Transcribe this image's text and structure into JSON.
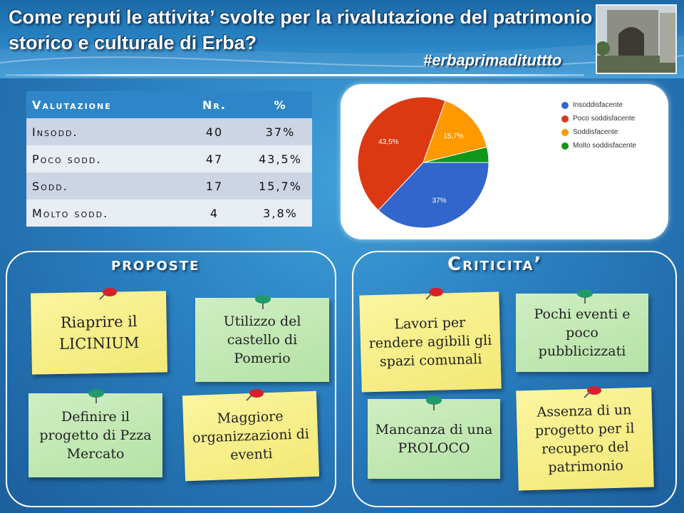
{
  "title": "Come reputi le attivita’ svolte per la rivalutazione del patrimonio storico e culturale di Erba?",
  "hashtag": "#erbaprimadituttto",
  "table": {
    "headers": [
      "Valutazione",
      "Nr.",
      "%"
    ],
    "rows": [
      {
        "label": "Insodd.",
        "nr": "40",
        "pct": "37%"
      },
      {
        "label": "Poco sodd.",
        "nr": "47",
        "pct": "43,5%"
      },
      {
        "label": "Sodd.",
        "nr": "17",
        "pct": "15,7%"
      },
      {
        "label": "Molto sodd.",
        "nr": "4",
        "pct": "3,8%"
      }
    ]
  },
  "chart_data": {
    "type": "pie",
    "categories": [
      "Insoddisfacente",
      "Poco soddisfacente",
      "Soddisfacente",
      "Molto soddisfacente"
    ],
    "values": [
      37,
      43.5,
      15.7,
      3.8
    ],
    "slice_labels": [
      "37%",
      "43,5%",
      "15,7%",
      ""
    ],
    "colors": [
      "#3366cc",
      "#dc3912",
      "#ff9900",
      "#109618"
    ],
    "legend_position": "right"
  },
  "proposte": {
    "title": "proposte",
    "notes": [
      "Riaprire il LICINIUM",
      "Utilizzo del castello di Pomerio",
      "Definire il progetto di Pzza Mercato",
      "Maggiore organizzazioni di eventi"
    ]
  },
  "criticita": {
    "title": "Criticita’",
    "notes": [
      "Lavori per rendere agibili gli spazi comunali",
      "Pochi eventi e poco pubblicizzati",
      "Mancanza di una PROLOCO",
      "Assenza di un progetto per il recupero del patrimonio"
    ]
  }
}
